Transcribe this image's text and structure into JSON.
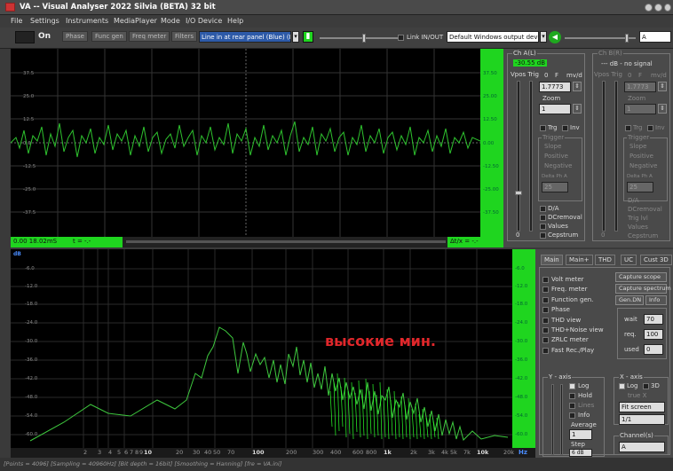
{
  "window": {
    "title": "VA -- Visual Analyser 2022 Silvia (BETA) 32 bit"
  },
  "menu": [
    "File",
    "Settings",
    "Instruments",
    "MediaPlayer",
    "Mode",
    "I/O Device",
    "Help"
  ],
  "toolbar": {
    "on": "On",
    "phase": "Phase",
    "func_gen": "Func gen",
    "freq_meter": "Freq meter",
    "filters": "Filters",
    "input_device": "Line in at rear panel (Blue) (R",
    "link": "Link IN/OUT",
    "output_device": "Default Windows output devic",
    "a": "A"
  },
  "scope": {
    "y_labels": [
      "37.5",
      "25.0",
      "12.5",
      "0.0",
      "-12.5",
      "-25.0",
      "-37.5"
    ],
    "right_labels": [
      "37.50",
      "25.00",
      "12.50",
      "0.00",
      "-12.50",
      "-25.00",
      "-37.50"
    ],
    "time_left": "0.00  18.02mS",
    "t_label": "t = -.-",
    "dx_label": "Δt/x = -.-"
  },
  "chA": {
    "title": "Ch A(L)",
    "level": "-30.55 dB",
    "vpos_trig": "Vpos Trig",
    "zero": "0",
    "f": "F",
    "unit": "mv/d",
    "value": "1.7773",
    "zoom": "Zoom",
    "zoom_val": "1",
    "trg": "Trg",
    "inv": "Inv",
    "trigger": "Trigger",
    "slope": "Slope",
    "positive": "Positive",
    "negative": "Negative",
    "delta": "Delta Ph A",
    "delta_val": "25",
    "da": "D/A",
    "dc": "DCremoval",
    "values": "Values",
    "cepstrum": "Cepstrum",
    "bottom": "0"
  },
  "chB": {
    "title": "Ch B(R)",
    "level": "--- dB - no signal",
    "vpos_trig": "Vpos Trig",
    "zero": "0",
    "f": "F",
    "unit": "mv/d",
    "value": "1.7773",
    "zoom": "Zoom",
    "zoom_val": "1",
    "trg": "Trg",
    "inv": "Inv",
    "trigger": "Trigger",
    "slope": "Slope",
    "positive": "Positive",
    "negative": "Negative",
    "delta": "Delta Ph A",
    "delta_val": "25",
    "da": "D/A",
    "dc": "DCremoval",
    "trig_lvl": "Trig lvl",
    "values": "Values",
    "cepstrum": "Cepstrum",
    "bottom": "0"
  },
  "spectrum": {
    "unit": "dB",
    "y_labels": [
      "-6.0",
      "-12.0",
      "-18.0",
      "-24.0",
      "-30.0",
      "-36.0",
      "-42.0",
      "-48.0",
      "-54.0",
      "-60.0"
    ],
    "right_labels": [
      "-6.0",
      "-12.0",
      "-18.0",
      "-24.0",
      "-30.0",
      "-36.0",
      "-42.0",
      "-48.0",
      "-54.0",
      "-60.0"
    ],
    "x_ticks": [
      [
        "2",
        false
      ],
      [
        "3",
        false
      ],
      [
        "4",
        false
      ],
      [
        "5",
        false
      ],
      [
        "6",
        false
      ],
      [
        "7",
        false
      ],
      [
        "8",
        false
      ],
      [
        "9",
        false
      ],
      [
        "10",
        true
      ],
      [
        "20",
        false
      ],
      [
        "30",
        false
      ],
      [
        "40",
        false
      ],
      [
        "50",
        false
      ],
      [
        "70",
        false
      ],
      [
        "100",
        true
      ],
      [
        "200",
        false
      ],
      [
        "300",
        false
      ],
      [
        "400",
        false
      ],
      [
        "600",
        false
      ],
      [
        "800",
        false
      ],
      [
        "1k",
        true
      ],
      [
        "2k",
        false
      ],
      [
        "3k",
        false
      ],
      [
        "4k",
        false
      ],
      [
        "5k",
        false
      ],
      [
        "7k",
        false
      ],
      [
        "10k",
        true
      ],
      [
        "20k",
        false
      ]
    ],
    "hz": "Hz",
    "annotation": "высокие мин."
  },
  "tabs": [
    "Main",
    "Main+",
    "THD",
    "UC",
    "Cust 3D"
  ],
  "main_panel": {
    "checks": [
      "Volt meter",
      "Freq. meter",
      "Function gen.",
      "Phase",
      "THD view",
      "THD+Noise view",
      "ZRLC meter",
      "Fast Rec./Play"
    ],
    "capture_scope": "Capture scope",
    "capture_spectrum": "Capture spectrum",
    "gen_dn": "Gen.DN",
    "info": "Info",
    "wait": "wait",
    "wait_val": "70",
    "req": "req.",
    "req_val": "100",
    "used": "used",
    "used_val": "0",
    "y_axis": "Y - axis",
    "log": "Log",
    "hold": "Hold",
    "lines": "Lines",
    "info2": "Info",
    "average": "Average",
    "average_val": "1",
    "step": "Step",
    "step_val": "6 dB",
    "x_axis": "X - axis",
    "x_log": "Log",
    "x_3d": "3D",
    "true_x": "true X",
    "fit_screen": "Fit screen",
    "ratio": "1/1",
    "channels": "Channel(s)",
    "channel_val": "A"
  },
  "status": "[Points = 4096] [Sampling = 40960Hz] [Bit depth = 16bit] [Smoothing = Hanning] [fre = VA.ini]"
}
